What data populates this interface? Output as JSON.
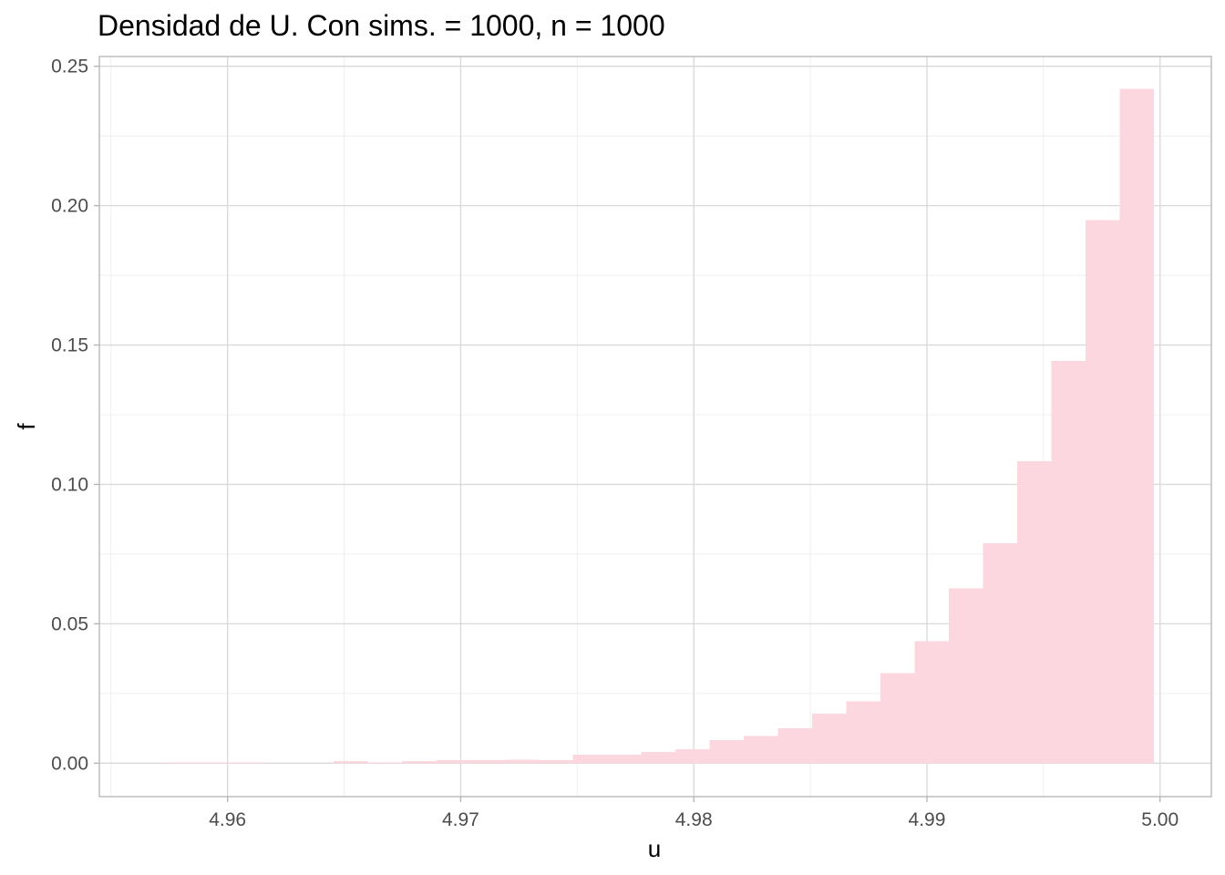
{
  "chart_data": {
    "type": "bar",
    "title": "Densidad de U. Con  sims. = 1000, n = 1000",
    "xlabel": "u",
    "ylabel": "f",
    "xlim": [
      4.9545,
      5.0022
    ],
    "ylim": [
      -0.012,
      0.2535
    ],
    "x_ticks": [
      4.96,
      4.97,
      4.98,
      4.99,
      5.0
    ],
    "x_tick_labels": [
      "4.96",
      "4.97",
      "4.98",
      "4.99",
      "5.00"
    ],
    "y_ticks": [
      0.0,
      0.05,
      0.1,
      0.15,
      0.2,
      0.25
    ],
    "y_tick_labels": [
      "0.00",
      "0.05",
      "0.10",
      "0.15",
      "0.20",
      "0.25"
    ],
    "grid": true,
    "bar_color": "#fcd7df",
    "bins": [
      {
        "x0": 4.95575,
        "x1": 4.95722,
        "value": 0.0
      },
      {
        "x0": 4.95722,
        "x1": 4.95868,
        "value": 0.0003
      },
      {
        "x0": 4.95868,
        "x1": 4.96015,
        "value": 0.0003
      },
      {
        "x0": 4.96015,
        "x1": 4.96161,
        "value": 0.0003
      },
      {
        "x0": 4.96161,
        "x1": 4.96308,
        "value": 0.0
      },
      {
        "x0": 4.96308,
        "x1": 4.96455,
        "value": 0.0
      },
      {
        "x0": 4.96455,
        "x1": 4.96601,
        "value": 0.0007
      },
      {
        "x0": 4.96601,
        "x1": 4.96748,
        "value": 0.0003
      },
      {
        "x0": 4.96748,
        "x1": 4.96895,
        "value": 0.0007
      },
      {
        "x0": 4.96895,
        "x1": 4.97041,
        "value": 0.001
      },
      {
        "x0": 4.97041,
        "x1": 4.97188,
        "value": 0.001
      },
      {
        "x0": 4.97188,
        "x1": 4.97334,
        "value": 0.0013
      },
      {
        "x0": 4.97334,
        "x1": 4.97481,
        "value": 0.001
      },
      {
        "x0": 4.97481,
        "x1": 4.97628,
        "value": 0.003
      },
      {
        "x0": 4.97628,
        "x1": 4.97774,
        "value": 0.003
      },
      {
        "x0": 4.97774,
        "x1": 4.97921,
        "value": 0.004
      },
      {
        "x0": 4.97921,
        "x1": 4.98068,
        "value": 0.005
      },
      {
        "x0": 4.98068,
        "x1": 4.98214,
        "value": 0.0082
      },
      {
        "x0": 4.98214,
        "x1": 4.98361,
        "value": 0.0097
      },
      {
        "x0": 4.98361,
        "x1": 4.98507,
        "value": 0.0125
      },
      {
        "x0": 4.98507,
        "x1": 4.98654,
        "value": 0.0178
      },
      {
        "x0": 4.98654,
        "x1": 4.98801,
        "value": 0.0222
      },
      {
        "x0": 4.98801,
        "x1": 4.98947,
        "value": 0.0323
      },
      {
        "x0": 4.98947,
        "x1": 4.99094,
        "value": 0.0437
      },
      {
        "x0": 4.99094,
        "x1": 4.99241,
        "value": 0.0627
      },
      {
        "x0": 4.99241,
        "x1": 4.99387,
        "value": 0.0789
      },
      {
        "x0": 4.99387,
        "x1": 4.99534,
        "value": 0.1084
      },
      {
        "x0": 4.99534,
        "x1": 4.9968,
        "value": 0.1443
      },
      {
        "x0": 4.9968,
        "x1": 4.99827,
        "value": 0.1948
      },
      {
        "x0": 4.99827,
        "x1": 4.99974,
        "value": 0.2419
      }
    ]
  }
}
